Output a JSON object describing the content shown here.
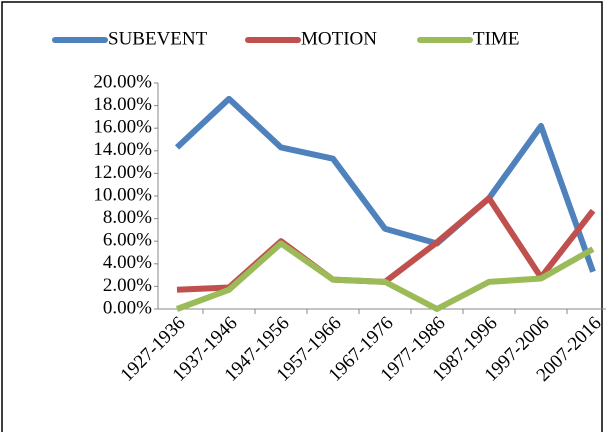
{
  "chart_data": {
    "type": "line",
    "categories": [
      "1927-1936",
      "1937-1946",
      "1947-1956",
      "1957-1966",
      "1967-1976",
      "1977-1986",
      "1987-1996",
      "1997-2006",
      "2007-2016"
    ],
    "series": [
      {
        "name": "SUBEVENT",
        "color": "#4f81bd",
        "values": [
          14.3,
          18.6,
          14.3,
          13.3,
          7.1,
          5.8,
          9.8,
          16.2,
          3.3
        ]
      },
      {
        "name": "MOTION",
        "color": "#c0504d",
        "values": [
          1.7,
          1.9,
          6.0,
          2.6,
          2.4,
          5.9,
          9.8,
          2.8,
          8.7
        ]
      },
      {
        "name": "TIME",
        "color": "#9bbb59",
        "values": [
          0,
          1.7,
          5.8,
          2.6,
          2.4,
          0,
          2.4,
          2.7,
          5.3
        ]
      }
    ],
    "ylim": [
      0,
      20
    ],
    "yticks": [
      {
        "value": 0,
        "label": "0.00%"
      },
      {
        "value": 2,
        "label": "2.00%"
      },
      {
        "value": 4,
        "label": "4.00%"
      },
      {
        "value": 6,
        "label": "6.00%"
      },
      {
        "value": 8,
        "label": "8.00%"
      },
      {
        "value": 10,
        "label": "10.00%"
      },
      {
        "value": 12,
        "label": "12.00%"
      },
      {
        "value": 14,
        "label": "14.00%"
      },
      {
        "value": 16,
        "label": "16.00%"
      },
      {
        "value": 18,
        "label": "18.00%"
      },
      {
        "value": 20,
        "label": "20.00%"
      }
    ],
    "legend": "top"
  }
}
